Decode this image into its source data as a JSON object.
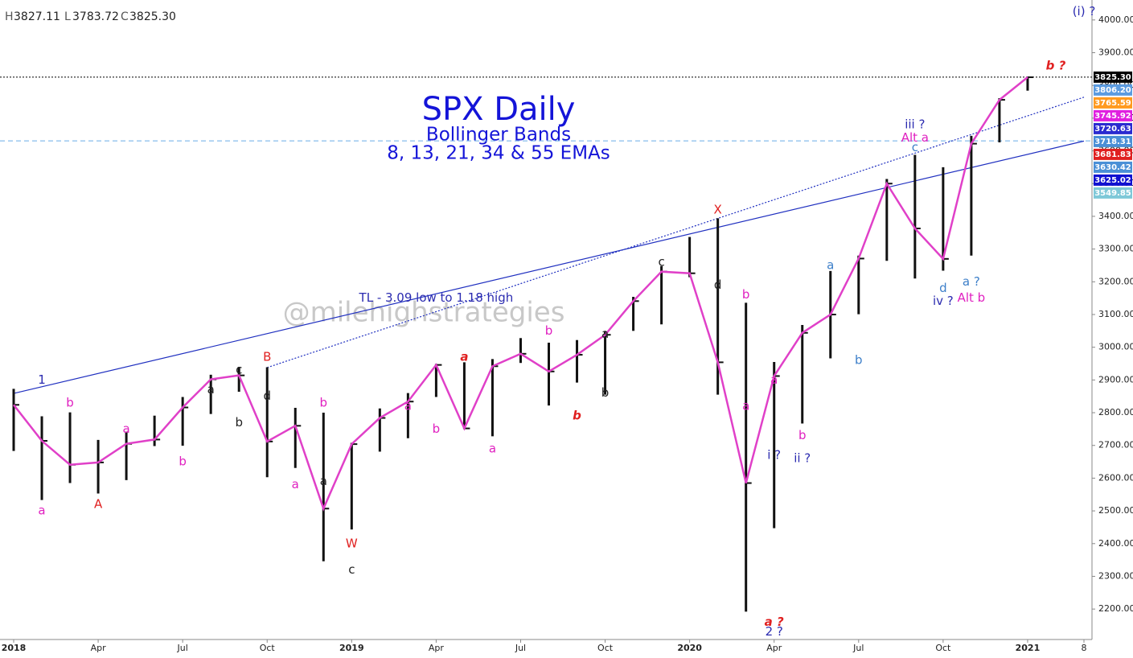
{
  "chart_data": {
    "type": "ohlc",
    "header": [
      {
        "key": "H",
        "value": "3827.11"
      },
      {
        "key": "L",
        "value": "3783.72"
      },
      {
        "key": "C",
        "value": "3825.30"
      }
    ],
    "title": "SPX Daily",
    "subtitle": "Bollinger Bands",
    "subtitle2": "8, 13, 21, 34 & 55 EMAs",
    "watermark": "@milehighstrategies",
    "x": [
      "2018-01",
      "2018-02",
      "2018-03",
      "2018-04",
      "2018-05",
      "2018-06",
      "2018-07",
      "2018-08",
      "2018-09",
      "2018-10",
      "2018-11",
      "2018-12",
      "2019-01",
      "2019-02",
      "2019-03",
      "2019-04",
      "2019-05",
      "2019-06",
      "2019-07",
      "2019-08",
      "2019-09",
      "2019-10",
      "2019-11",
      "2019-12",
      "2020-01",
      "2020-02",
      "2020-03",
      "2020-04",
      "2020-05",
      "2020-06",
      "2020-07",
      "2020-08",
      "2020-09",
      "2020-10",
      "2020-11",
      "2020-12",
      "2021-01"
    ],
    "high": [
      2873,
      2789,
      2801,
      2717,
      2742,
      2791,
      2848,
      2916,
      2940,
      2939,
      2815,
      2800,
      2708,
      2813,
      2860,
      2949,
      2954,
      2964,
      3028,
      3014,
      3022,
      3050,
      3154,
      3248,
      3337,
      3394,
      3136,
      2955,
      3068,
      3233,
      3280,
      3514,
      3588,
      3550,
      3646,
      3761,
      3827
    ],
    "low": [
      2683,
      2533,
      2585,
      2553,
      2594,
      2698,
      2699,
      2796,
      2864,
      2603,
      2631,
      2346,
      2443,
      2681,
      2722,
      2848,
      2750,
      2728,
      2952,
      2822,
      2892,
      2855,
      3050,
      3070,
      3214,
      2855,
      2192,
      2447,
      2767,
      2966,
      3101,
      3264,
      3210,
      3234,
      3280,
      3626,
      3784
    ],
    "close": [
      2824,
      2714,
      2641,
      2648,
      2705,
      2718,
      2816,
      2902,
      2914,
      2712,
      2760,
      2507,
      2704,
      2784,
      2834,
      2946,
      2752,
      2942,
      2980,
      2926,
      2977,
      3038,
      3141,
      3231,
      3226,
      2954,
      2585,
      2912,
      3044,
      3100,
      3271,
      3500,
      3363,
      3270,
      3622,
      3756,
      3825
    ],
    "bar_color": "#111111",
    "line_color": "#e040c8",
    "xlim": [
      "2018-01",
      "2021-03"
    ],
    "xticks": [
      {
        "value": "2018-01",
        "label": "2018"
      },
      {
        "value": "2018-04",
        "label": "Apr"
      },
      {
        "value": "2018-07",
        "label": "Jul"
      },
      {
        "value": "2018-10",
        "label": "Oct"
      },
      {
        "value": "2019-01",
        "label": "2019"
      },
      {
        "value": "2019-04",
        "label": "Apr"
      },
      {
        "value": "2019-07",
        "label": "Jul"
      },
      {
        "value": "2019-10",
        "label": "Oct"
      },
      {
        "value": "2020-01",
        "label": "2020"
      },
      {
        "value": "2020-04",
        "label": "Apr"
      },
      {
        "value": "2020-07",
        "label": "Jul"
      },
      {
        "value": "2020-10",
        "label": "Oct"
      },
      {
        "value": "2021-01",
        "label": "2021"
      },
      {
        "value": "2021-03",
        "label": "8"
      }
    ],
    "ylim": [
      2107,
      4061
    ],
    "yticks": [
      {
        "value": 2200,
        "label": "2200.00"
      },
      {
        "value": 2300,
        "label": "2300.00"
      },
      {
        "value": 2400,
        "label": "2400.00"
      },
      {
        "value": 2500,
        "label": "2500.00"
      },
      {
        "value": 2600,
        "label": "2600.00"
      },
      {
        "value": 2700,
        "label": "2700.00"
      },
      {
        "value": 2800,
        "label": "2800.00"
      },
      {
        "value": 2900,
        "label": "2900.00"
      },
      {
        "value": 3000,
        "label": "3000.00"
      },
      {
        "value": 3100,
        "label": "3100.00"
      },
      {
        "value": 3200,
        "label": "3200.00"
      },
      {
        "value": 3300,
        "label": "3300.00"
      },
      {
        "value": 3400,
        "label": "3400.00"
      },
      {
        "value": 3500,
        "label": "3500.00"
      },
      {
        "value": 3600,
        "label": "3600.00"
      },
      {
        "value": 3700,
        "label": "3700.00"
      },
      {
        "value": 3800,
        "label": "3800.00"
      },
      {
        "value": 3900,
        "label": "3900.00"
      },
      {
        "value": 4000,
        "label": "4000.00"
      }
    ],
    "price_tags": [
      {
        "value": 3825.3,
        "label": "3825.30",
        "color": "#000000"
      },
      {
        "value": 3806.2,
        "label": "3806.20",
        "color": "#5b9be0"
      },
      {
        "value": 3765.59,
        "label": "3765.59",
        "color": "#ff9a1f"
      },
      {
        "value": 3745.92,
        "label": "3745.92",
        "color": "#e020e0"
      },
      {
        "value": 3720.63,
        "label": "3720.63",
        "color": "#2a2ad0"
      },
      {
        "value": 3718.31,
        "label": "3718.31",
        "color": "#4a8fd6"
      },
      {
        "value": 3681.83,
        "label": "3681.83",
        "color": "#e02020"
      },
      {
        "value": 3630.42,
        "label": "3630.42",
        "color": "#4a8fd6"
      },
      {
        "value": 3625.02,
        "label": "3625.02",
        "color": "#1010d0"
      },
      {
        "value": 3549.85,
        "label": "3549.85",
        "color": "#7ec8d8"
      }
    ],
    "lines": [
      {
        "from": {
          "x": "2018-01",
          "y": 2859
        },
        "to": {
          "x": "2021-03",
          "y": 3630
        },
        "color": "#2030c0",
        "style": "solid"
      },
      {
        "from": {
          "x": "2018-10",
          "y": 2938
        },
        "to": {
          "x": "2021-03",
          "y": 3764
        },
        "color": "#2030c0",
        "style": "dotted"
      }
    ],
    "hlines": [
      {
        "y": 3825.3,
        "color": "#000000",
        "style": "dotted"
      },
      {
        "y": 3630.42,
        "color": "#6aaee8",
        "style": "dashed"
      }
    ],
    "annotations": [
      {
        "text": "TL - 3.09 low to 1.18 high",
        "x": "2019-04",
        "y": 3150,
        "color": "#2b2bb0"
      },
      {
        "text": "1",
        "x": "2018-02",
        "y": 2900,
        "color": "#2b2bb0"
      },
      {
        "text": "b",
        "x": "2018-03",
        "y": 2830,
        "color": "#e020c0"
      },
      {
        "text": "a",
        "x": "2018-02",
        "y": 2500,
        "color": "#e020c0"
      },
      {
        "text": "A",
        "x": "2018-04",
        "y": 2520,
        "color": "#e02020"
      },
      {
        "text": "a",
        "x": "2018-05",
        "y": 2750,
        "color": "#e020c0"
      },
      {
        "text": "b",
        "x": "2018-07",
        "y": 2650,
        "color": "#e020c0"
      },
      {
        "text": "a",
        "x": "2018-08",
        "y": 2870,
        "color": "#222222"
      },
      {
        "text": "b",
        "x": "2018-09",
        "y": 2770,
        "color": "#222222"
      },
      {
        "text": "c",
        "x": "2018-09",
        "y": 2930,
        "color": "#222222"
      },
      {
        "text": "d",
        "x": "2018-10",
        "y": 2850,
        "color": "#222222"
      },
      {
        "text": "B",
        "x": "2018-10",
        "y": 2970,
        "color": "#e02020"
      },
      {
        "text": "a",
        "x": "2018-11",
        "y": 2580,
        "color": "#e020c0"
      },
      {
        "text": "b",
        "x": "2018-12",
        "y": 2830,
        "color": "#e020c0"
      },
      {
        "text": "a",
        "x": "2018-12",
        "y": 2590,
        "color": "#222222"
      },
      {
        "text": "c",
        "x": "2019-01",
        "y": 2320,
        "color": "#222222"
      },
      {
        "text": "W",
        "x": "2019-01",
        "y": 2400,
        "color": "#e02020"
      },
      {
        "text": "a",
        "x": "2019-03",
        "y": 2820,
        "color": "#e020c0"
      },
      {
        "text": "b",
        "x": "2019-04",
        "y": 2750,
        "color": "#e020c0"
      },
      {
        "text": "a",
        "x": "2019-05",
        "y": 2970,
        "color": "#e02020",
        "emphasis": true
      },
      {
        "text": "a",
        "x": "2019-06",
        "y": 2690,
        "color": "#e020c0"
      },
      {
        "text": "b",
        "x": "2019-08",
        "y": 3050,
        "color": "#e020c0"
      },
      {
        "text": "b",
        "x": "2019-09",
        "y": 2790,
        "color": "#e02020",
        "emphasis": true
      },
      {
        "text": "a",
        "x": "2019-10",
        "y": 3040,
        "color": "#222222"
      },
      {
        "text": "b",
        "x": "2019-10",
        "y": 2860,
        "color": "#222222"
      },
      {
        "text": "c",
        "x": "2019-12",
        "y": 3260,
        "color": "#222222"
      },
      {
        "text": "d",
        "x": "2020-02",
        "y": 3190,
        "color": "#222222"
      },
      {
        "text": "X",
        "x": "2020-02",
        "y": 3420,
        "color": "#e02020"
      },
      {
        "text": "b",
        "x": "2020-03",
        "y": 3160,
        "color": "#e020c0"
      },
      {
        "text": "a",
        "x": "2020-03",
        "y": 2820,
        "color": "#e020c0"
      },
      {
        "text": "a ?",
        "x": "2020-04",
        "y": 2160,
        "color": "#e02020",
        "emphasis": true
      },
      {
        "text": "2 ?",
        "x": "2020-04",
        "y": 2130,
        "color": "#2b2bb0"
      },
      {
        "text": "i ?",
        "x": "2020-04",
        "y": 2670,
        "color": "#2b2bb0"
      },
      {
        "text": "ii ?",
        "x": "2020-05",
        "y": 2660,
        "color": "#2b2bb0"
      },
      {
        "text": "a",
        "x": "2020-04",
        "y": 2900,
        "color": "#e020c0"
      },
      {
        "text": "b",
        "x": "2020-05",
        "y": 2730,
        "color": "#e020c0"
      },
      {
        "text": "a",
        "x": "2020-06",
        "y": 3250,
        "color": "#3d7fc9"
      },
      {
        "text": "b",
        "x": "2020-07",
        "y": 2960,
        "color": "#3d7fc9"
      },
      {
        "text": "iii ?",
        "x": "2020-09",
        "y": 3680,
        "color": "#2b2bb0"
      },
      {
        "text": "Alt a",
        "x": "2020-09",
        "y": 3640,
        "color": "#e020c0"
      },
      {
        "text": "c",
        "x": "2020-09",
        "y": 3610,
        "color": "#3d7fc9"
      },
      {
        "text": "d",
        "x": "2020-10",
        "y": 3180,
        "color": "#3d7fc9"
      },
      {
        "text": "iv ?",
        "x": "2020-10",
        "y": 3140,
        "color": "#2b2bb0"
      },
      {
        "text": "a ?",
        "x": "2020-11",
        "y": 3200,
        "color": "#3d7fc9"
      },
      {
        "text": "Alt b",
        "x": "2020-11",
        "y": 3150,
        "color": "#e020c0"
      },
      {
        "text": "b ?",
        "x": "2021-02",
        "y": 3860,
        "color": "#e02020",
        "emphasis": true
      },
      {
        "text": "(i) ?",
        "x": "2021-03",
        "y": 4025,
        "color": "#2b2bb0"
      }
    ]
  }
}
